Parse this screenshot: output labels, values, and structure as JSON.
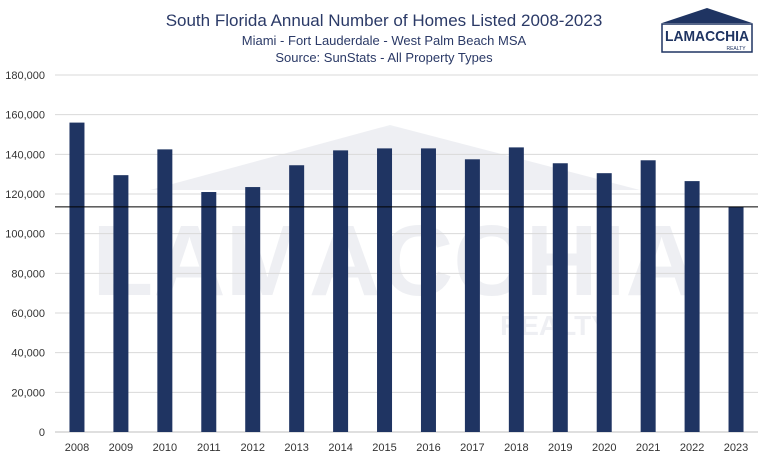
{
  "header": {
    "title": "South Florida Annual Number of Homes Listed 2008-2023",
    "subtitle": "Miami - Fort Lauderdale - West Palm Beach MSA",
    "source": "Source: SunStats - All Property Types"
  },
  "logo": {
    "name": "LAMACCHIA",
    "tagline": "REALTY",
    "color": "#1f3462"
  },
  "watermark": {
    "text": "LAMACCHIA",
    "sub": "REALTY"
  },
  "colors": {
    "bar": "#1f3462",
    "grid": "#d9d9d9",
    "reference_line": "#000000"
  },
  "chart_data": {
    "type": "bar",
    "title": "South Florida Annual Number of Homes Listed 2008-2023",
    "subtitle": "Miami - Fort Lauderdale - West Palm Beach MSA",
    "xlabel": "",
    "ylabel": "",
    "categories": [
      "2008",
      "2009",
      "2010",
      "2011",
      "2012",
      "2013",
      "2014",
      "2015",
      "2016",
      "2017",
      "2018",
      "2019",
      "2020",
      "2021",
      "2022",
      "2023"
    ],
    "values": [
      156000,
      129500,
      142500,
      121000,
      123500,
      134500,
      142000,
      143000,
      143000,
      137500,
      143500,
      135500,
      130500,
      137000,
      126500,
      113500
    ],
    "ylim": [
      0,
      180000
    ],
    "yticks": [
      "0",
      "20,000",
      "40,000",
      "60,000",
      "80,000",
      "100,000",
      "120,000",
      "140,000",
      "160,000",
      "180,000"
    ],
    "ytick_values": [
      0,
      20000,
      40000,
      60000,
      80000,
      100000,
      120000,
      140000,
      160000,
      180000
    ],
    "reference_line": 113500,
    "grid": true,
    "legend": "none"
  }
}
